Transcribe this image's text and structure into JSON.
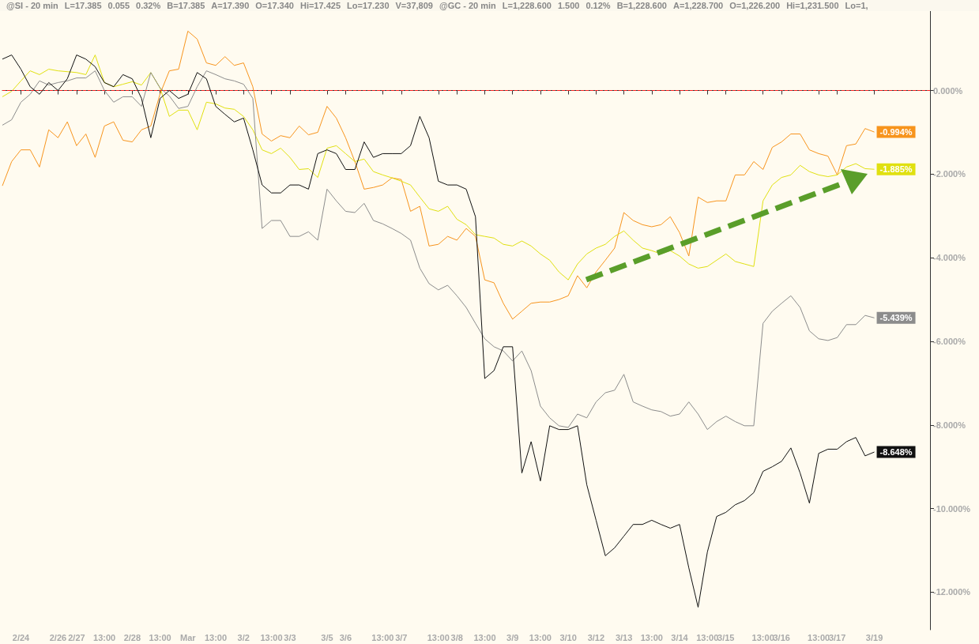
{
  "chart_data": {
    "type": "line",
    "categories": [
      null,
      null,
      "2/24",
      null,
      null,
      null,
      "2/26",
      null,
      "2/27",
      null,
      null,
      "13:00",
      null,
      null,
      "2/28",
      null,
      null,
      "13:00",
      null,
      null,
      "Mar",
      null,
      null,
      "13:00",
      null,
      null,
      "3/2",
      null,
      null,
      "13:00",
      null,
      "3/3",
      null,
      null,
      null,
      "3/5",
      null,
      "3/6",
      null,
      null,
      null,
      "13:00",
      null,
      "3/7",
      null,
      null,
      null,
      "13:00",
      null,
      "3/8",
      null,
      null,
      "13:00",
      null,
      null,
      "3/9",
      null,
      null,
      "13:00",
      null,
      null,
      "3/10",
      null,
      null,
      "3/12",
      null,
      null,
      "3/13",
      null,
      null,
      "13:00",
      null,
      null,
      "3/14",
      null,
      null,
      "13:00",
      null,
      "3/15",
      null,
      null,
      null,
      "13:00",
      null,
      "3/16",
      null,
      null,
      null,
      "13:00",
      null,
      "3/17",
      null,
      null,
      null,
      "3/19",
      null,
      null,
      null,
      null,
      null,
      null
    ],
    "series": [
      {
        "color": "#f7941d",
        "values": [
          -2.28,
          -1.7,
          -1.42,
          -1.42,
          -1.83,
          -0.94,
          -1.13,
          -0.75,
          -1.32,
          -1.04,
          -1.6,
          -0.85,
          -0.75,
          -1.19,
          -1.23,
          -0.94,
          -0.85,
          -0.08,
          0.47,
          0.51,
          1.42,
          1.23,
          0.66,
          0.6,
          0.81,
          0.6,
          0.66,
          0.09,
          -1.04,
          -1.21,
          -1.08,
          -1.13,
          -0.85,
          -1.06,
          -1,
          -0.38,
          -0.66,
          -1.13,
          -1.7,
          -2.36,
          -2.32,
          -2.26,
          -2.09,
          -2.13,
          -2.89,
          -2.77,
          -3.72,
          -3.68,
          -3.49,
          -3.58,
          -3.3,
          -3.49,
          -4.53,
          -4.6,
          -5.09,
          -5.47,
          -5.28,
          -5.09,
          -5.06,
          -5.06,
          -5,
          -4.91,
          -4.43,
          -4.72,
          -4.34,
          -4.06,
          -3.77,
          -2.92,
          -3.11,
          -3.21,
          -3.26,
          -3.21,
          -3.02,
          -3.4,
          -3.96,
          -2.55,
          -2.68,
          -2.64,
          -2.64,
          -2.02,
          -2.02,
          -1.7,
          -1.89,
          -1.36,
          -1.23,
          -1.04,
          -1.04,
          -1.42,
          -1.51,
          -1.57,
          -2.02,
          -1.32,
          -1.28,
          -0.91,
          -0.994,
          null,
          null,
          null,
          null,
          null,
          null
        ],
        "value_labels": [
          null,
          null,
          null,
          null,
          null,
          null,
          null,
          null,
          null,
          null,
          null,
          null,
          null,
          null,
          null,
          null,
          null,
          null,
          null,
          null,
          null,
          null,
          null,
          null,
          null,
          null,
          null,
          null,
          null,
          null,
          null,
          null,
          null,
          null,
          null,
          null,
          null,
          null,
          null,
          null,
          null,
          null,
          null,
          null,
          null,
          null,
          null,
          null,
          null,
          null,
          null,
          null,
          null,
          null,
          null,
          null,
          null,
          null,
          null,
          null,
          null,
          null,
          null,
          null,
          null,
          null,
          null,
          null,
          null,
          null,
          null,
          null,
          null,
          null,
          null,
          null,
          null,
          null,
          null,
          null,
          null,
          null,
          null,
          null,
          null,
          null,
          null,
          null,
          null,
          null,
          null,
          null,
          null,
          null,
          "-0.994%",
          null,
          null,
          null,
          null,
          null,
          null
        ]
      },
      {
        "color": "#e0e010",
        "values": [
          -0.15,
          -0.02,
          0.23,
          0.47,
          0.38,
          0.51,
          0.47,
          0.45,
          0.43,
          0.38,
          0.85,
          0.19,
          0.09,
          0.15,
          0.21,
          0.13,
          0.43,
          0.06,
          -0.62,
          -0.47,
          -0.47,
          -0.94,
          -0.28,
          -0.32,
          -0.42,
          -0.45,
          -0.62,
          -0.94,
          -1.42,
          -1.51,
          -1.38,
          -1.6,
          -1.89,
          -1.87,
          -2.08,
          -1.38,
          -1.32,
          -1.51,
          -1.7,
          -1.64,
          -1.94,
          -2.02,
          -2.09,
          -2.17,
          -2.26,
          -2.55,
          -2.83,
          -2.89,
          -2.77,
          -3.08,
          -3.21,
          -3.45,
          -3.49,
          -3.53,
          -3.68,
          -3.72,
          -3.6,
          -3.72,
          -3.91,
          -4.06,
          -4.34,
          -4.53,
          -4.15,
          -3.91,
          -3.77,
          -3.68,
          -3.49,
          -3.36,
          -3.58,
          -3.77,
          -3.83,
          -3.91,
          -3.83,
          -3.96,
          -4.15,
          -4.25,
          -4.21,
          -4.06,
          -3.91,
          -4.09,
          -4.15,
          -4.21,
          -2.64,
          -2.26,
          -2.08,
          -2.02,
          -1.79,
          -1.94,
          -2.02,
          -2.06,
          -2.02,
          -1.83,
          -1.75,
          -1.87,
          -1.885,
          null,
          null,
          null,
          null,
          null,
          null
        ],
        "value_labels": [
          null,
          null,
          null,
          null,
          null,
          null,
          null,
          null,
          null,
          null,
          null,
          null,
          null,
          null,
          null,
          null,
          null,
          null,
          null,
          null,
          null,
          null,
          null,
          null,
          null,
          null,
          null,
          null,
          null,
          null,
          null,
          null,
          null,
          null,
          null,
          null,
          null,
          null,
          null,
          null,
          null,
          null,
          null,
          null,
          null,
          null,
          null,
          null,
          null,
          null,
          null,
          null,
          null,
          null,
          null,
          null,
          null,
          null,
          null,
          null,
          null,
          null,
          null,
          null,
          null,
          null,
          null,
          null,
          null,
          null,
          null,
          null,
          null,
          null,
          null,
          null,
          null,
          null,
          null,
          null,
          null,
          null,
          null,
          null,
          null,
          null,
          null,
          null,
          null,
          null,
          null,
          null,
          null,
          null,
          "-1.885%",
          null,
          null,
          null,
          null,
          null,
          null
        ]
      },
      {
        "color": "#8c8c8c",
        "values": [
          -0.83,
          -0.7,
          -0.28,
          -0.09,
          0.23,
          0.13,
          0.19,
          0.23,
          0.3,
          0.3,
          0.47,
          0,
          -0.28,
          -0.15,
          -0.15,
          -0.38,
          0.43,
          0.06,
          -0.13,
          -0.43,
          -0.38,
          0.09,
          0.47,
          0.38,
          0.28,
          0.23,
          0.15,
          -0.19,
          -3.3,
          -3.11,
          -3.11,
          -3.49,
          -3.49,
          -3.38,
          -3.58,
          -2.36,
          -2.64,
          -2.89,
          -2.92,
          -2.7,
          -3.11,
          -3.19,
          -3.3,
          -3.42,
          -3.58,
          -4.25,
          -4.62,
          -4.77,
          -4.66,
          -4.91,
          -5.19,
          -5.57,
          -5.94,
          -6.13,
          -6.23,
          -6.47,
          -6.23,
          -6.7,
          -7.55,
          -7.83,
          -8.02,
          -8.06,
          -7.74,
          -7.83,
          -7.45,
          -7.23,
          -7.17,
          -6.79,
          -7.45,
          -7.55,
          -7.64,
          -7.68,
          -7.79,
          -7.74,
          -7.45,
          -7.74,
          -8.11,
          -7.92,
          -7.79,
          -7.92,
          -8.02,
          -8.02,
          -5.57,
          -5.28,
          -5.09,
          -4.91,
          -5.19,
          -5.75,
          -5.94,
          -5.98,
          -5.91,
          -5.6,
          -5.6,
          -5.38,
          -5.439,
          null,
          null,
          null,
          null,
          null,
          null
        ],
        "value_labels": [
          null,
          null,
          null,
          null,
          null,
          null,
          null,
          null,
          null,
          null,
          null,
          null,
          null,
          null,
          null,
          null,
          null,
          null,
          null,
          null,
          null,
          null,
          null,
          null,
          null,
          null,
          null,
          null,
          null,
          null,
          null,
          null,
          null,
          null,
          null,
          null,
          null,
          null,
          null,
          null,
          null,
          null,
          null,
          null,
          null,
          null,
          null,
          null,
          null,
          null,
          null,
          null,
          null,
          null,
          null,
          null,
          null,
          null,
          null,
          null,
          null,
          null,
          null,
          null,
          null,
          null,
          null,
          null,
          null,
          null,
          null,
          null,
          null,
          null,
          null,
          null,
          null,
          null,
          null,
          null,
          null,
          null,
          null,
          null,
          null,
          null,
          null,
          null,
          null,
          null,
          null,
          null,
          null,
          null,
          "-5.439%",
          null,
          null,
          null,
          null,
          null,
          null
        ]
      },
      {
        "color": "#111111",
        "values": [
          0.75,
          0.85,
          0.51,
          0.09,
          -0.09,
          0.19,
          0,
          0.28,
          0.85,
          0.75,
          0.57,
          0.19,
          0.09,
          0.38,
          0.28,
          -0.19,
          -1.13,
          -0.19,
          0,
          -0.19,
          -0.09,
          0.43,
          0.28,
          -0.38,
          -0.57,
          -0.75,
          -0.66,
          -1.42,
          -2.26,
          -2.45,
          -2.45,
          -2.26,
          -2.26,
          -2.36,
          -1.51,
          -1.42,
          -1.51,
          -1.89,
          -1.89,
          -1.23,
          -1.6,
          -1.51,
          -1.51,
          -1.51,
          -1.32,
          -0.62,
          -1.13,
          -2.17,
          -2.26,
          -2.26,
          -2.36,
          -3.02,
          -6.89,
          -6.7,
          -6.13,
          -6.13,
          -9.15,
          -8.4,
          -9.34,
          -8.02,
          -8.11,
          -8.11,
          -8.02,
          -9.43,
          -10.28,
          -11.13,
          -10.94,
          -10.66,
          -10.38,
          -10.38,
          -10.28,
          -10.38,
          -10.47,
          -10.38,
          -11.42,
          -12.36,
          -11.04,
          -10.19,
          -10.09,
          -9.91,
          -9.81,
          -9.62,
          -9.11,
          -9,
          -8.87,
          -8.55,
          -9.15,
          -9.87,
          -8.68,
          -8.58,
          -8.58,
          -8.4,
          -8.3,
          -8.74,
          -8.648,
          null,
          null,
          null,
          null,
          null,
          null
        ],
        "value_labels": [
          null,
          null,
          null,
          null,
          null,
          null,
          null,
          null,
          null,
          null,
          null,
          null,
          null,
          null,
          null,
          null,
          null,
          null,
          null,
          null,
          null,
          null,
          null,
          null,
          null,
          null,
          null,
          null,
          null,
          null,
          null,
          null,
          null,
          null,
          null,
          null,
          null,
          null,
          null,
          null,
          null,
          null,
          null,
          null,
          null,
          null,
          null,
          null,
          null,
          null,
          null,
          null,
          null,
          null,
          null,
          null,
          null,
          null,
          null,
          null,
          null,
          null,
          null,
          null,
          null,
          null,
          null,
          null,
          null,
          null,
          null,
          null,
          null,
          null,
          null,
          null,
          null,
          null,
          null,
          null,
          null,
          null,
          null,
          null,
          null,
          null,
          null,
          null,
          null,
          null,
          null,
          null,
          null,
          null,
          "-8.648%",
          null,
          null,
          null,
          null,
          null,
          null
        ]
      }
    ],
    "ylim": [
      -12.9,
      1.9
    ],
    "yticks": [
      {
        "value": 0,
        "label": "0.000%"
      },
      {
        "value": -2,
        "label": "-2.000%"
      },
      {
        "value": -4,
        "label": "-4.000%"
      },
      {
        "value": -6,
        "label": "-6.000%"
      },
      {
        "value": -8,
        "label": "-8.000%"
      },
      {
        "value": -10,
        "label": "-10.000%"
      },
      {
        "value": -12,
        "label": "-12.000%"
      }
    ],
    "ref_lines": [
      {
        "axis": "y",
        "value": 0,
        "color": "#ff2020",
        "line_style": "dashed"
      }
    ],
    "annotations": [
      "@SI - 20 min",
      "L=17.385",
      "0.055",
      "0.32%",
      "B=17.385",
      "A=17.390",
      "O=17.340",
      "Hi=17.425",
      "Lo=17.230",
      "V=37,809",
      "@GC - 20 min",
      "L=1,228.600",
      "1.500",
      "0.12%",
      "B=1,228.600",
      "A=1,228.700",
      "O=1,226.200",
      "Hi=1,231.500",
      "Lo=1,"
    ],
    "grid": false,
    "marker": "none",
    "line_style": "solid"
  }
}
